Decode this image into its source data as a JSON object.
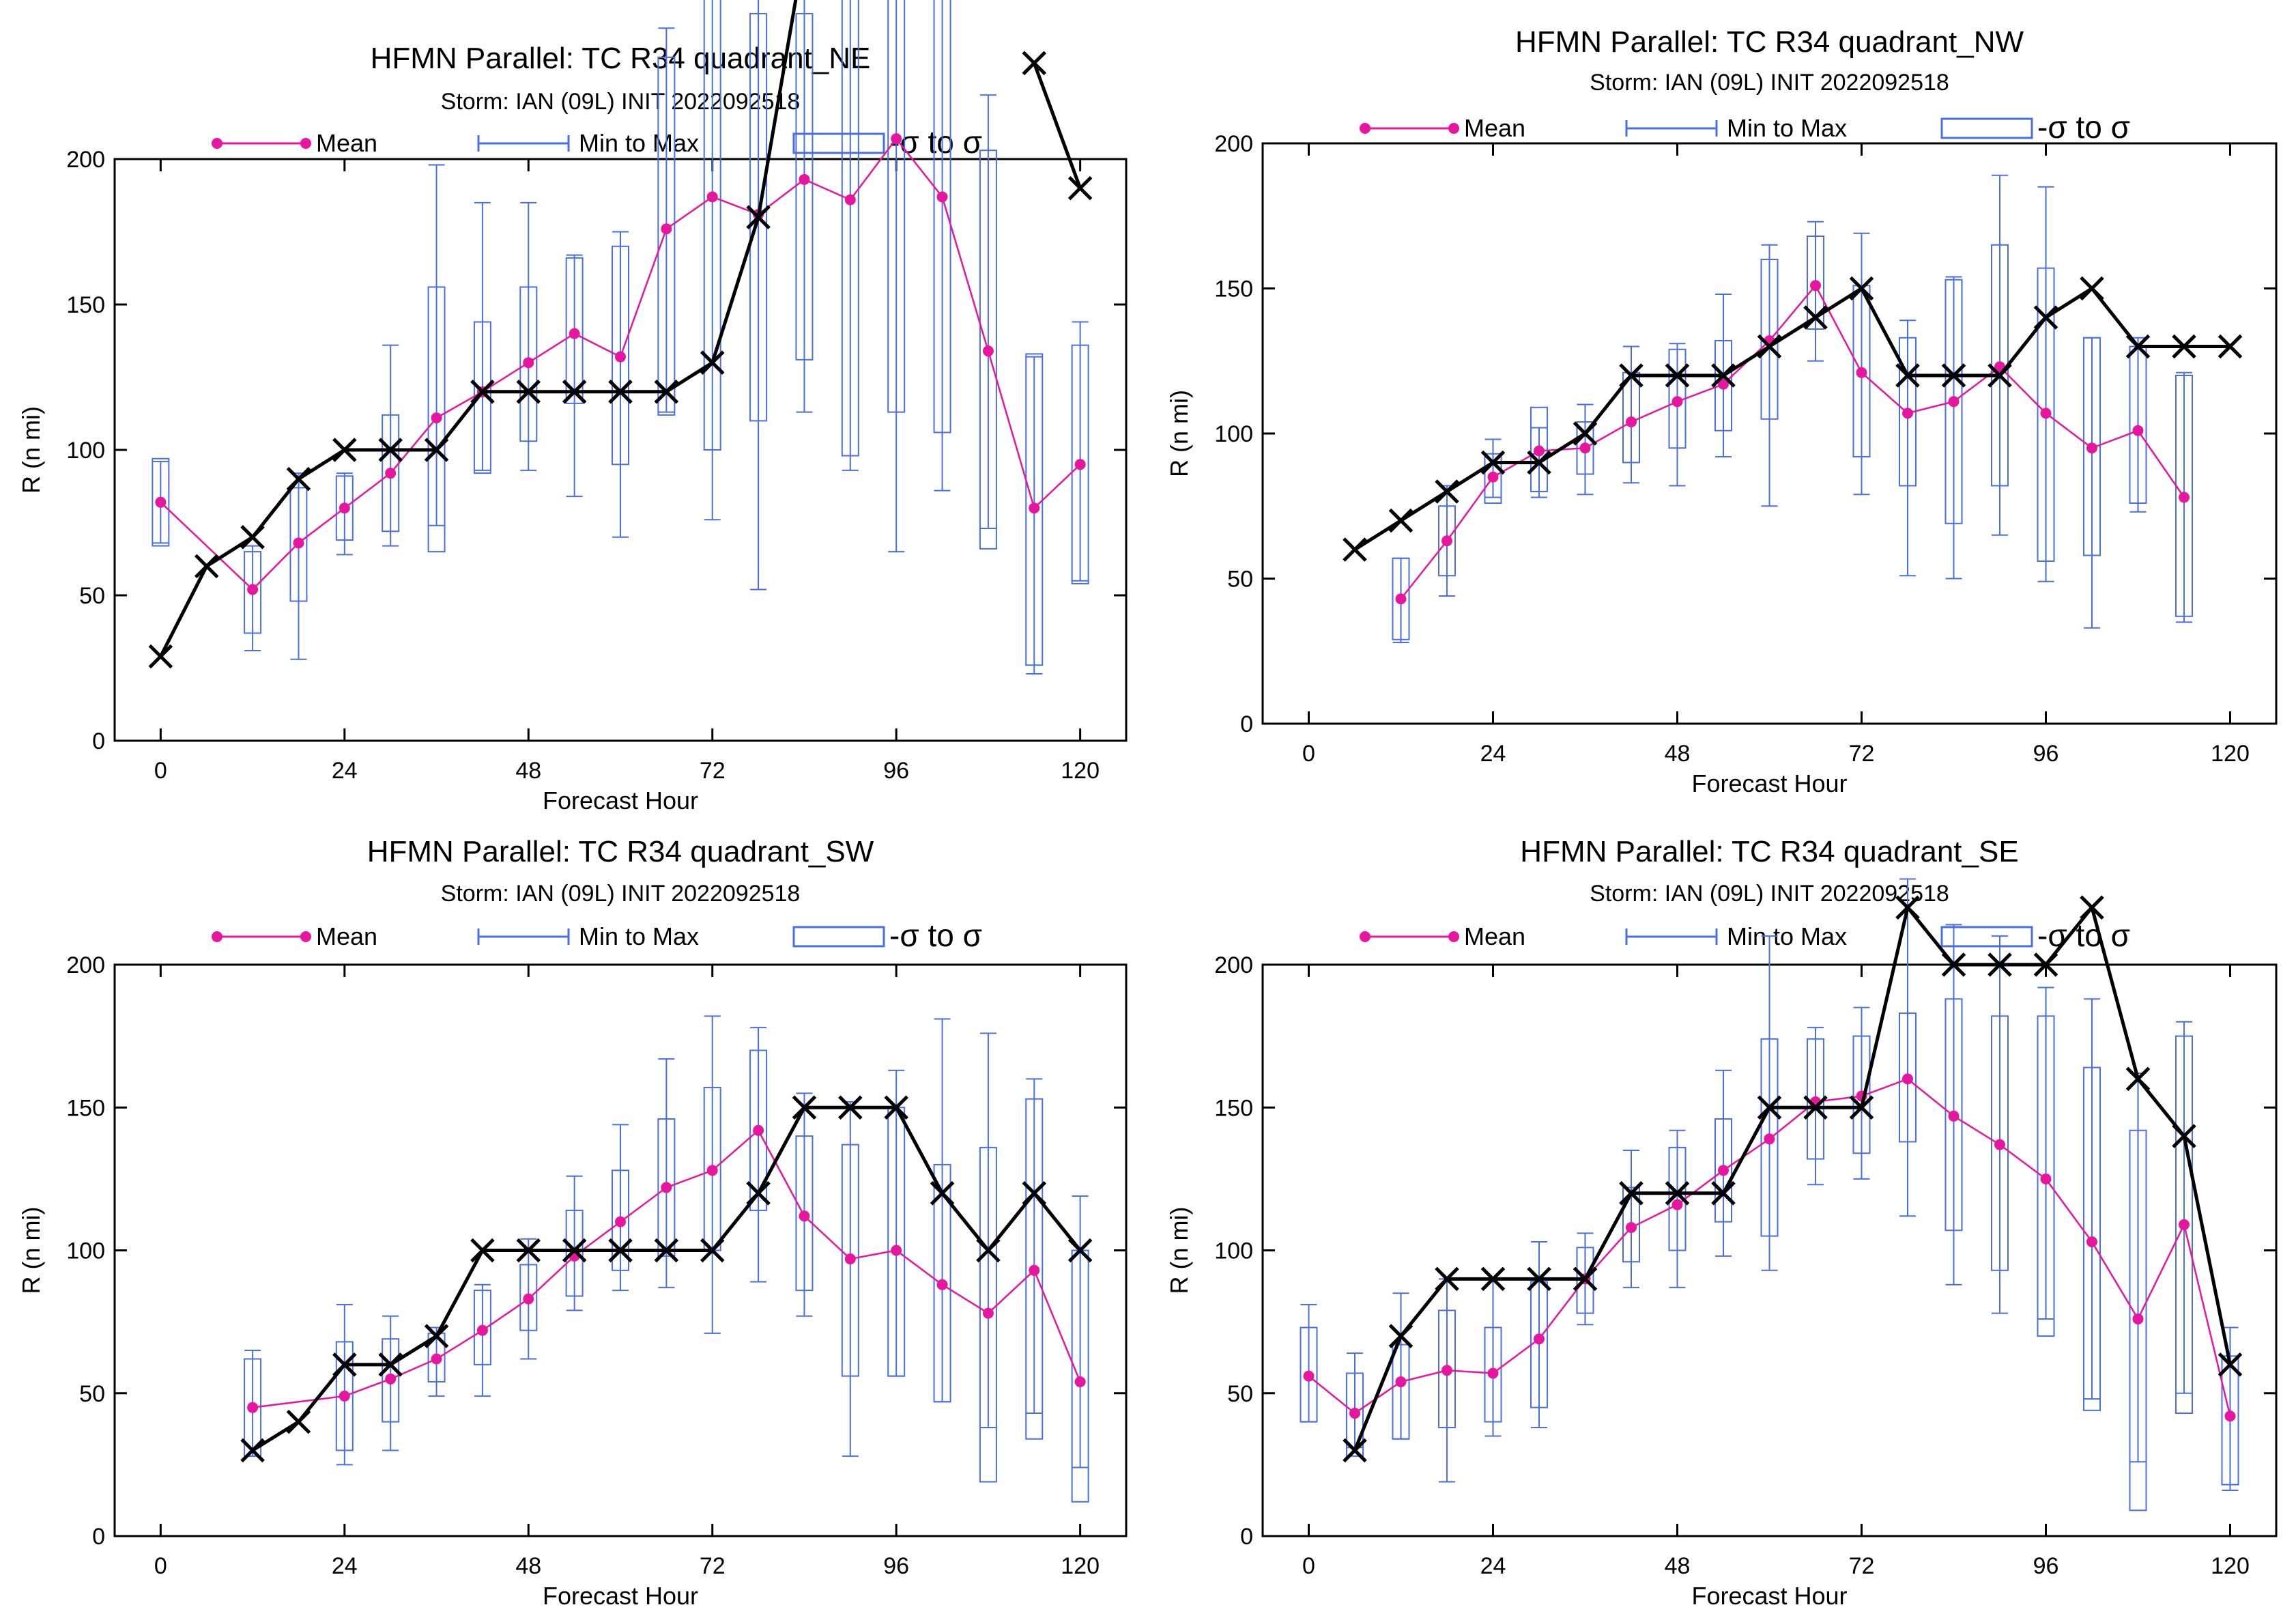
{
  "colors": {
    "mean": "#e6169e",
    "range": "#4a6ee6",
    "box": "#4a6ee6",
    "obs": "#000000",
    "axis": "#000000"
  },
  "legend": {
    "mean": "Mean",
    "minmax": "Min to Max",
    "sigma": "-σ to σ"
  },
  "chart_data": [
    {
      "type": "line",
      "title": "HFMN Parallel: TC  R34 quadrant_NE",
      "subtitle": "Storm: IAN (09L) INIT 2022092518",
      "xlabel": "Forecast Hour",
      "ylabel": "R (n mi)",
      "xlim": [
        -6,
        126
      ],
      "ylim": [
        0,
        200
      ],
      "xticks": [
        0,
        24,
        48,
        72,
        96,
        120
      ],
      "yticks": [
        0,
        50,
        100,
        150,
        200
      ],
      "mean": [
        [
          0,
          82
        ],
        [
          12,
          52
        ],
        [
          18,
          68
        ],
        [
          24,
          80
        ],
        [
          30,
          92
        ],
        [
          36,
          111
        ],
        [
          42,
          120
        ],
        [
          48,
          130
        ],
        [
          54,
          140
        ],
        [
          60,
          132
        ],
        [
          66,
          176
        ],
        [
          72,
          187
        ],
        [
          78,
          181
        ],
        [
          84,
          193
        ],
        [
          90,
          186
        ],
        [
          96,
          207
        ],
        [
          102,
          187
        ],
        [
          108,
          134
        ],
        [
          114,
          80
        ],
        [
          120,
          95
        ]
      ],
      "sigma_box": [
        [
          0,
          67,
          97
        ],
        [
          12,
          37,
          65
        ],
        [
          18,
          48,
          87
        ],
        [
          24,
          69,
          91
        ],
        [
          30,
          72,
          112
        ],
        [
          36,
          65,
          156
        ],
        [
          42,
          92,
          144
        ],
        [
          48,
          103,
          156
        ],
        [
          54,
          116,
          166
        ],
        [
          60,
          95,
          170
        ],
        [
          66,
          112,
          235
        ],
        [
          72,
          100,
          270
        ],
        [
          78,
          110,
          250
        ],
        [
          84,
          131,
          250
        ],
        [
          90,
          98,
          270
        ],
        [
          96,
          113,
          300
        ],
        [
          102,
          106,
          270
        ],
        [
          108,
          66,
          203
        ],
        [
          114,
          26,
          133
        ],
        [
          120,
          54,
          136
        ]
      ],
      "min_max": [
        [
          0,
          68,
          96
        ],
        [
          12,
          31,
          67
        ],
        [
          18,
          28,
          92
        ],
        [
          24,
          64,
          92
        ],
        [
          30,
          67,
          136
        ],
        [
          36,
          74,
          198
        ],
        [
          42,
          93,
          185
        ],
        [
          48,
          93,
          185
        ],
        [
          54,
          84,
          167
        ],
        [
          60,
          70,
          175
        ],
        [
          66,
          113,
          245
        ],
        [
          72,
          76,
          300
        ],
        [
          78,
          52,
          300
        ],
        [
          84,
          113,
          300
        ],
        [
          90,
          93,
          300
        ],
        [
          96,
          65,
          300
        ],
        [
          102,
          86,
          300
        ],
        [
          108,
          73,
          222
        ],
        [
          114,
          23,
          132
        ],
        [
          120,
          55,
          144
        ]
      ],
      "observed": [
        [
          0,
          29
        ],
        [
          6,
          60
        ],
        [
          12,
          70
        ],
        [
          18,
          90
        ],
        [
          24,
          100
        ],
        [
          30,
          100
        ],
        [
          36,
          100
        ],
        [
          42,
          120
        ],
        [
          48,
          120
        ],
        [
          54,
          120
        ],
        [
          60,
          120
        ],
        [
          66,
          120
        ],
        [
          72,
          130
        ],
        [
          78,
          180
        ],
        [
          84,
          272
        ],
        [
          114,
          233
        ],
        [
          120,
          190
        ]
      ],
      "observed_breaks_after": [
        84
      ]
    },
    {
      "type": "line",
      "title": "HFMN Parallel: TC  R34 quadrant_NW",
      "subtitle": "Storm: IAN (09L) INIT 2022092518",
      "xlabel": "Forecast Hour",
      "ylabel": "R (n mi)",
      "xlim": [
        -6,
        126
      ],
      "ylim": [
        0,
        200
      ],
      "xticks": [
        0,
        24,
        48,
        72,
        96,
        120
      ],
      "yticks": [
        0,
        50,
        100,
        150,
        200
      ],
      "mean": [
        [
          12,
          43
        ],
        [
          18,
          63
        ],
        [
          24,
          85
        ],
        [
          30,
          94
        ],
        [
          36,
          95
        ],
        [
          42,
          104
        ],
        [
          48,
          111
        ],
        [
          54,
          117
        ],
        [
          60,
          132
        ],
        [
          66,
          151
        ],
        [
          72,
          121
        ],
        [
          78,
          107
        ],
        [
          84,
          111
        ],
        [
          90,
          123
        ],
        [
          96,
          107
        ],
        [
          102,
          95
        ],
        [
          108,
          101
        ],
        [
          114,
          78
        ]
      ],
      "sigma_box": [
        [
          12,
          29,
          57
        ],
        [
          18,
          51,
          75
        ],
        [
          24,
          76,
          93
        ],
        [
          30,
          80,
          109
        ],
        [
          36,
          86,
          104
        ],
        [
          42,
          90,
          121
        ],
        [
          48,
          95,
          129
        ],
        [
          54,
          101,
          132
        ],
        [
          60,
          105,
          160
        ],
        [
          66,
          136,
          168
        ],
        [
          72,
          92,
          151
        ],
        [
          78,
          82,
          133
        ],
        [
          84,
          69,
          153
        ],
        [
          90,
          82,
          165
        ],
        [
          96,
          56,
          157
        ],
        [
          102,
          58,
          133
        ],
        [
          108,
          76,
          130
        ],
        [
          114,
          37,
          120
        ]
      ],
      "min_max": [
        [
          12,
          28,
          57
        ],
        [
          18,
          44,
          82
        ],
        [
          24,
          78,
          98
        ],
        [
          30,
          78,
          102
        ],
        [
          36,
          79,
          110
        ],
        [
          42,
          83,
          130
        ],
        [
          48,
          82,
          131
        ],
        [
          54,
          92,
          148
        ],
        [
          60,
          75,
          165
        ],
        [
          66,
          125,
          173
        ],
        [
          72,
          79,
          169
        ],
        [
          78,
          51,
          139
        ],
        [
          84,
          50,
          154
        ],
        [
          90,
          65,
          189
        ],
        [
          96,
          49,
          185
        ],
        [
          102,
          33,
          133
        ],
        [
          108,
          73,
          133
        ],
        [
          114,
          35,
          121
        ]
      ],
      "observed": [
        [
          6,
          60
        ],
        [
          12,
          70
        ],
        [
          18,
          80
        ],
        [
          24,
          90
        ],
        [
          30,
          90
        ],
        [
          36,
          100
        ],
        [
          42,
          120
        ],
        [
          48,
          120
        ],
        [
          54,
          120
        ],
        [
          60,
          130
        ],
        [
          66,
          140
        ],
        [
          72,
          150
        ],
        [
          78,
          120
        ],
        [
          84,
          120
        ],
        [
          90,
          120
        ],
        [
          96,
          140
        ],
        [
          102,
          150
        ],
        [
          108,
          130
        ],
        [
          114,
          130
        ],
        [
          120,
          130
        ]
      ],
      "observed_breaks_after": []
    },
    {
      "type": "line",
      "title": "HFMN Parallel: TC  R34 quadrant_SW",
      "subtitle": "Storm: IAN (09L) INIT 2022092518",
      "xlabel": "Forecast Hour",
      "ylabel": "R (n mi)",
      "xlim": [
        -6,
        126
      ],
      "ylim": [
        0,
        200
      ],
      "xticks": [
        0,
        24,
        48,
        72,
        96,
        120
      ],
      "yticks": [
        0,
        50,
        100,
        150,
        200
      ],
      "mean": [
        [
          12,
          45
        ],
        [
          24,
          49
        ],
        [
          30,
          55
        ],
        [
          36,
          62
        ],
        [
          42,
          72
        ],
        [
          48,
          83
        ],
        [
          54,
          98
        ],
        [
          60,
          110
        ],
        [
          66,
          122
        ],
        [
          72,
          128
        ],
        [
          78,
          142
        ],
        [
          84,
          112
        ],
        [
          90,
          97
        ],
        [
          96,
          100
        ],
        [
          102,
          88
        ],
        [
          108,
          78
        ],
        [
          114,
          93
        ],
        [
          120,
          54
        ]
      ],
      "sigma_box": [
        [
          12,
          28,
          62
        ],
        [
          24,
          30,
          68
        ],
        [
          30,
          40,
          69
        ],
        [
          36,
          54,
          71
        ],
        [
          42,
          60,
          86
        ],
        [
          48,
          72,
          95
        ],
        [
          54,
          84,
          114
        ],
        [
          60,
          93,
          128
        ],
        [
          66,
          98,
          146
        ],
        [
          72,
          100,
          157
        ],
        [
          78,
          114,
          170
        ],
        [
          84,
          86,
          140
        ],
        [
          90,
          56,
          137
        ],
        [
          96,
          56,
          150
        ],
        [
          102,
          47,
          130
        ],
        [
          108,
          19,
          136
        ],
        [
          114,
          34,
          153
        ],
        [
          120,
          12,
          100
        ]
      ],
      "min_max": [
        [
          12,
          28,
          65
        ],
        [
          24,
          25,
          81
        ],
        [
          30,
          30,
          77
        ],
        [
          36,
          49,
          73
        ],
        [
          42,
          49,
          88
        ],
        [
          48,
          62,
          104
        ],
        [
          54,
          79,
          126
        ],
        [
          60,
          86,
          144
        ],
        [
          66,
          87,
          167
        ],
        [
          72,
          71,
          182
        ],
        [
          78,
          89,
          178
        ],
        [
          84,
          77,
          155
        ],
        [
          90,
          28,
          152
        ],
        [
          96,
          56,
          163
        ],
        [
          102,
          47,
          181
        ],
        [
          108,
          38,
          176
        ],
        [
          114,
          43,
          160
        ],
        [
          120,
          24,
          119
        ]
      ],
      "observed": [
        [
          12,
          30
        ],
        [
          18,
          40
        ],
        [
          24,
          60
        ],
        [
          30,
          60
        ],
        [
          36,
          70
        ],
        [
          42,
          100
        ],
        [
          48,
          100
        ],
        [
          54,
          100
        ],
        [
          60,
          100
        ],
        [
          66,
          100
        ],
        [
          72,
          100
        ],
        [
          78,
          120
        ],
        [
          84,
          150
        ],
        [
          90,
          150
        ],
        [
          96,
          150
        ],
        [
          102,
          120
        ],
        [
          108,
          100
        ],
        [
          114,
          120
        ],
        [
          120,
          100
        ]
      ],
      "observed_breaks_after": []
    },
    {
      "type": "line",
      "title": "HFMN Parallel: TC  R34 quadrant_SE",
      "subtitle": "Storm: IAN (09L) INIT 2022092518",
      "xlabel": "Forecast Hour",
      "ylabel": "R (n mi)",
      "xlim": [
        -6,
        126
      ],
      "ylim": [
        0,
        200
      ],
      "xticks": [
        0,
        24,
        48,
        72,
        96,
        120
      ],
      "yticks": [
        0,
        50,
        100,
        150,
        200
      ],
      "mean": [
        [
          0,
          56
        ],
        [
          6,
          43
        ],
        [
          12,
          54
        ],
        [
          18,
          58
        ],
        [
          24,
          57
        ],
        [
          30,
          69
        ],
        [
          36,
          90
        ],
        [
          42,
          108
        ],
        [
          48,
          116
        ],
        [
          54,
          128
        ],
        [
          60,
          139
        ],
        [
          66,
          152
        ],
        [
          72,
          154
        ],
        [
          78,
          160
        ],
        [
          84,
          147
        ],
        [
          90,
          137
        ],
        [
          96,
          125
        ],
        [
          102,
          103
        ],
        [
          108,
          76
        ],
        [
          114,
          109
        ],
        [
          120,
          42
        ]
      ],
      "sigma_box": [
        [
          0,
          40,
          73
        ],
        [
          6,
          28,
          57
        ],
        [
          12,
          34,
          67
        ],
        [
          18,
          38,
          79
        ],
        [
          24,
          40,
          73
        ],
        [
          30,
          45,
          89
        ],
        [
          36,
          78,
          101
        ],
        [
          42,
          96,
          122
        ],
        [
          48,
          100,
          136
        ],
        [
          54,
          110,
          146
        ],
        [
          60,
          105,
          174
        ],
        [
          66,
          132,
          174
        ],
        [
          72,
          134,
          175
        ],
        [
          78,
          138,
          183
        ],
        [
          84,
          107,
          188
        ],
        [
          90,
          93,
          182
        ],
        [
          96,
          70,
          182
        ],
        [
          102,
          44,
          164
        ],
        [
          108,
          9,
          142
        ],
        [
          114,
          43,
          175
        ],
        [
          120,
          18,
          63
        ]
      ],
      "min_max": [
        [
          0,
          40,
          81
        ],
        [
          6,
          31,
          64
        ],
        [
          12,
          34,
          85
        ],
        [
          18,
          19,
          90
        ],
        [
          24,
          35,
          90
        ],
        [
          30,
          38,
          103
        ],
        [
          36,
          74,
          106
        ],
        [
          42,
          87,
          135
        ],
        [
          48,
          87,
          142
        ],
        [
          54,
          98,
          163
        ],
        [
          60,
          93,
          210
        ],
        [
          66,
          123,
          178
        ],
        [
          72,
          125,
          185
        ],
        [
          78,
          112,
          230
        ],
        [
          84,
          88,
          214
        ],
        [
          90,
          78,
          210
        ],
        [
          96,
          76,
          192
        ],
        [
          102,
          48,
          188
        ],
        [
          108,
          26,
          162
        ],
        [
          114,
          50,
          180
        ],
        [
          120,
          16,
          73
        ]
      ],
      "observed": [
        [
          6,
          30
        ],
        [
          12,
          70
        ],
        [
          18,
          90
        ],
        [
          24,
          90
        ],
        [
          30,
          90
        ],
        [
          36,
          90
        ],
        [
          42,
          120
        ],
        [
          48,
          120
        ],
        [
          54,
          120
        ],
        [
          60,
          150
        ],
        [
          66,
          150
        ],
        [
          72,
          150
        ],
        [
          78,
          220
        ],
        [
          84,
          200
        ],
        [
          90,
          200
        ],
        [
          96,
          200
        ],
        [
          102,
          220
        ],
        [
          108,
          160
        ],
        [
          114,
          140
        ],
        [
          120,
          60
        ]
      ],
      "observed_breaks_after": []
    }
  ]
}
